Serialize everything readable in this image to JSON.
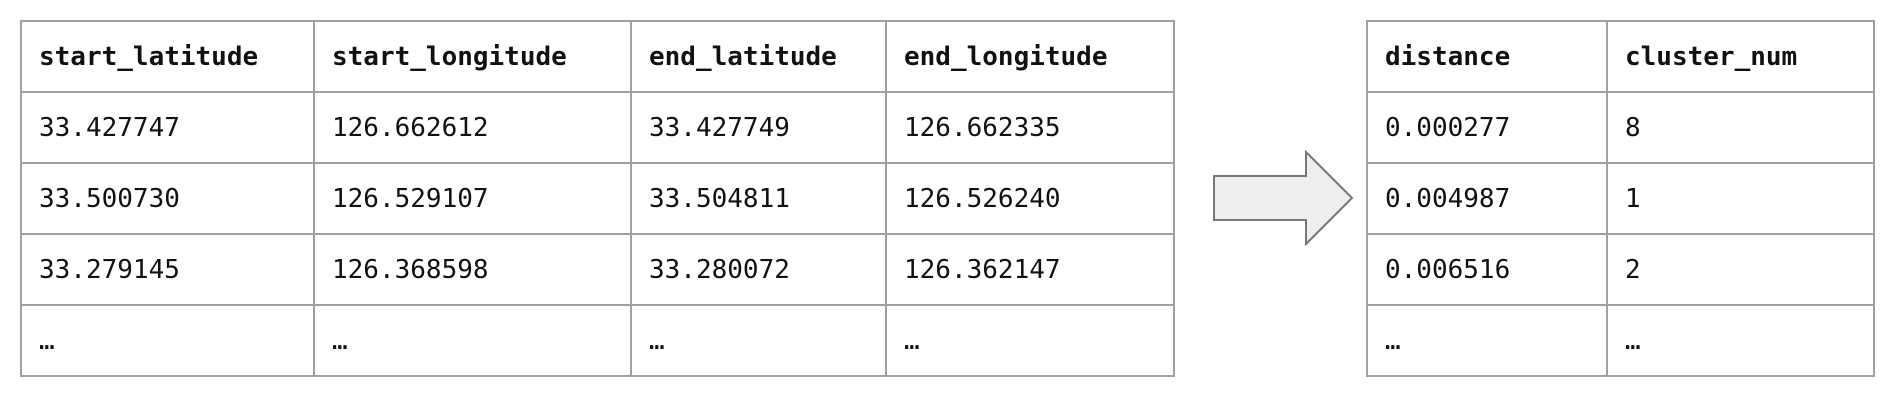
{
  "input_table": {
    "columns": [
      "start_latitude",
      "start_longitude",
      "end_latitude",
      "end_longitude"
    ],
    "rows": [
      [
        "33.427747",
        "126.662612",
        "33.427749",
        "126.662335"
      ],
      [
        "33.500730",
        "126.529107",
        "33.504811",
        "126.526240"
      ],
      [
        "33.279145",
        "126.368598",
        "33.280072",
        "126.362147"
      ],
      [
        "…",
        "…",
        "…",
        "…"
      ]
    ]
  },
  "output_table": {
    "columns": [
      "distance",
      "cluster_num"
    ],
    "rows": [
      [
        "0.000277",
        "8"
      ],
      [
        "0.004987",
        "1"
      ],
      [
        "0.006516",
        "2"
      ],
      [
        "…",
        "…"
      ]
    ]
  },
  "arrow": {
    "icon": "right-arrow-icon",
    "fill": "#eeeeee",
    "stroke": "#777777"
  },
  "colors": {
    "table_border": "#a0a0a0",
    "text": "#111111",
    "background": "#ffffff"
  }
}
